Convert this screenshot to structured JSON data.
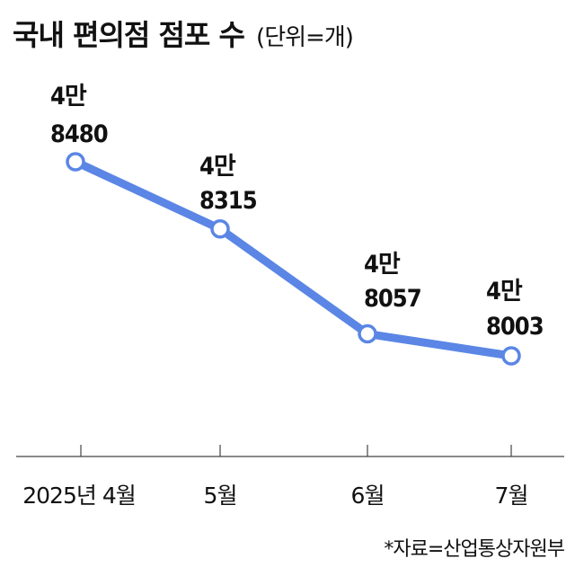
{
  "header": {
    "title": "국내 편의점 점포 수",
    "unit": "(단위=개)"
  },
  "source": "*자료=산업통상자원부",
  "colors": {
    "line": "#5b86e5",
    "axis": "#444444",
    "text": "#111111",
    "marker_fill": "#ffffff"
  },
  "chart_data": {
    "type": "line",
    "title": "국내 편의점 점포 수",
    "unit": "(단위=개)",
    "categories": [
      "2025년 4월",
      "5월",
      "6월",
      "7월"
    ],
    "values": [
      48480,
      48315,
      48057,
      48003
    ],
    "data_labels": [
      [
        "4만",
        "8480"
      ],
      [
        "4만",
        "8315"
      ],
      [
        "4만",
        "8057"
      ],
      [
        "4만",
        "8003"
      ]
    ],
    "legend": "none",
    "grid": false
  }
}
